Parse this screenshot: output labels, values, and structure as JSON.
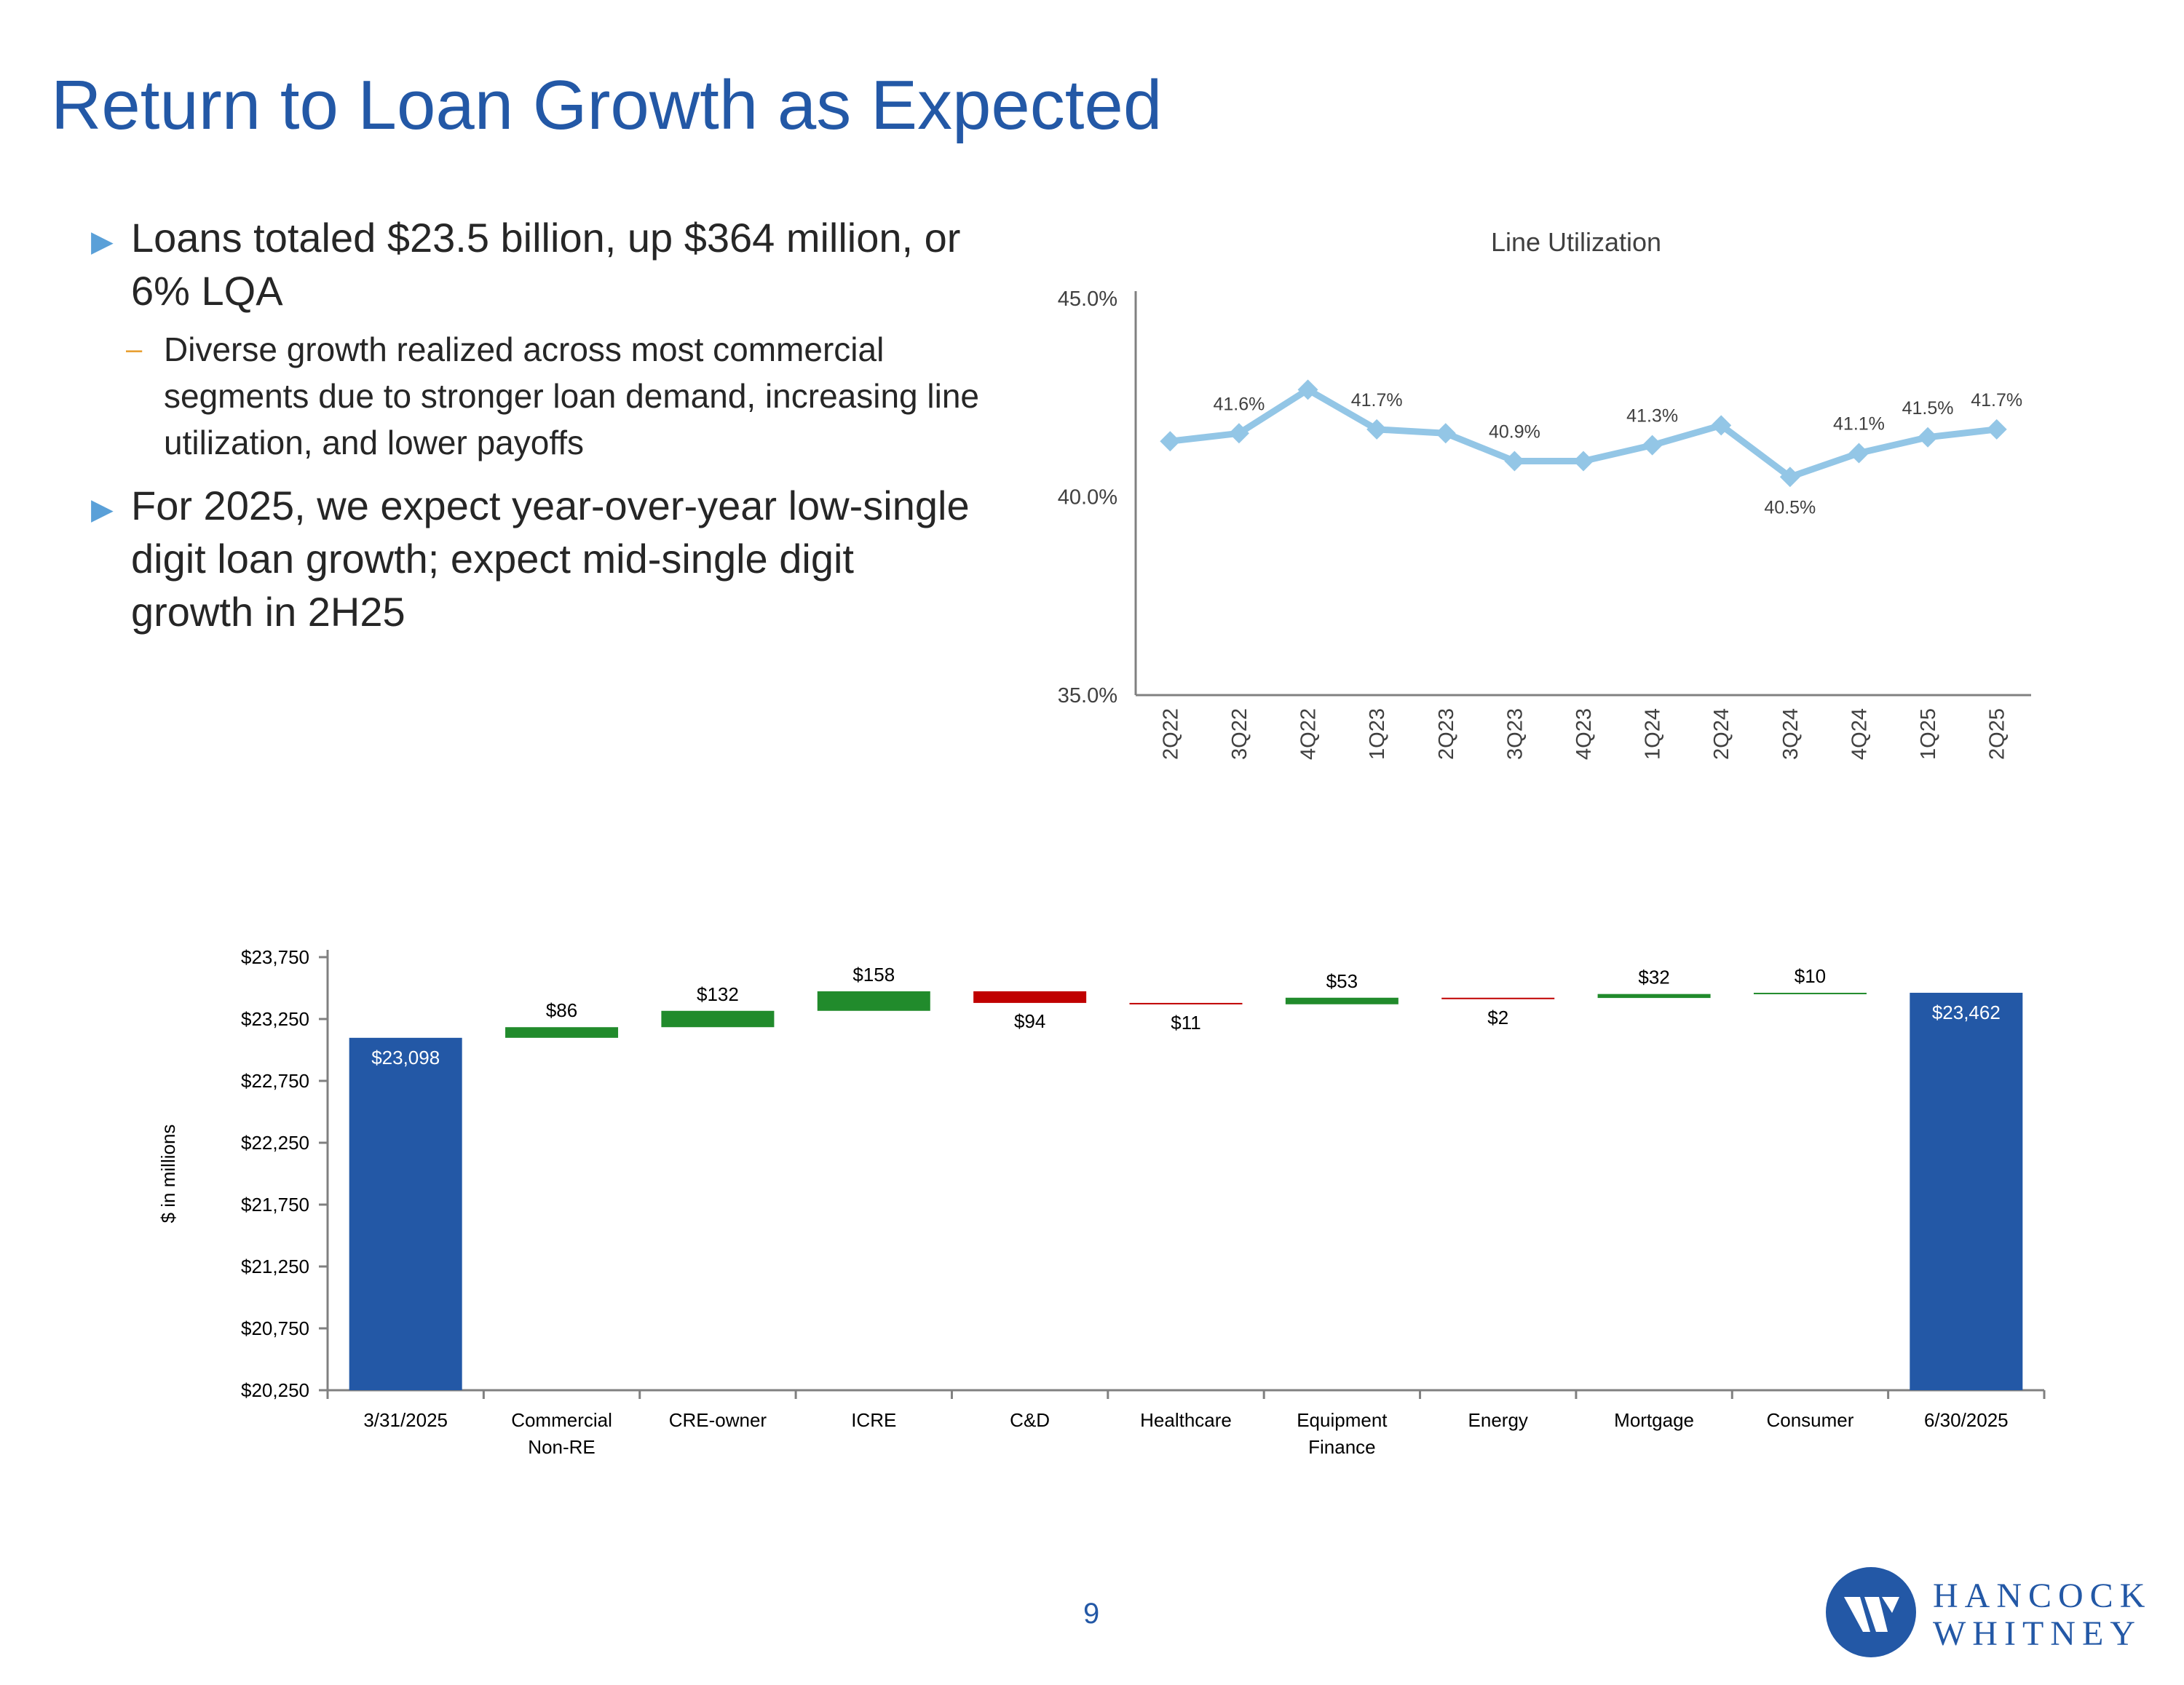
{
  "title": "Return to Loan Growth as Expected",
  "bullets": [
    {
      "text": "Loans totaled $23.5 billion, up $364 million, or 6% LQA",
      "sub": [
        "Diverse growth realized across most commercial segments due to stronger loan demand, increasing line utilization, and lower payoffs"
      ]
    },
    {
      "text": "For 2025, we expect year-over-year low-single digit loan growth; expect mid-single digit growth in 2H25",
      "sub": []
    }
  ],
  "page_number": "9",
  "brand": {
    "line1": "HANCOCK",
    "line2": "WHITNEY"
  },
  "colors": {
    "title": "#2358a6",
    "line": "#93c6e6",
    "bar_total": "#2358a6",
    "increase": "#218b2c",
    "decrease": "#c00000"
  },
  "chart_data": [
    {
      "type": "line",
      "title": "Line Utilization",
      "categories": [
        "2Q22",
        "3Q22",
        "4Q22",
        "1Q23",
        "2Q23",
        "3Q23",
        "4Q23",
        "1Q24",
        "2Q24",
        "3Q24",
        "4Q24",
        "1Q25",
        "2Q25"
      ],
      "values": [
        41.4,
        41.6,
        42.7,
        41.7,
        41.6,
        40.9,
        40.9,
        41.3,
        41.8,
        40.5,
        41.1,
        41.5,
        41.7
      ],
      "data_labels": [
        "",
        "41.6%",
        "",
        "41.7%",
        "",
        "40.9%",
        "",
        "41.3%",
        "",
        "40.5%",
        "41.1%",
        "41.5%",
        "41.7%"
      ],
      "ylim": [
        35.0,
        45.0
      ],
      "yticks": [
        "35.0%",
        "40.0%",
        "45.0%"
      ],
      "grid": false
    },
    {
      "type": "bar",
      "subtype": "waterfall",
      "ylabel": "$ in millions",
      "ylim": [
        20250,
        23750
      ],
      "yticks": [
        "$20,250",
        "$20,750",
        "$21,250",
        "$21,750",
        "$22,250",
        "$22,750",
        "$23,250",
        "$23,750"
      ],
      "categories": [
        "3/31/2025",
        "Commercial Non-RE",
        "CRE-owner",
        "ICRE",
        "C&D",
        "Healthcare",
        "Equipment Finance",
        "Energy",
        "Mortgage",
        "Consumer",
        "6/30/2025"
      ],
      "kinds": [
        "total",
        "increase",
        "increase",
        "increase",
        "decrease",
        "decrease",
        "increase",
        "decrease",
        "increase",
        "increase",
        "total"
      ],
      "values": [
        23098,
        86,
        132,
        158,
        -94,
        -11,
        53,
        -2,
        32,
        10,
        23462
      ],
      "data_labels": [
        "$23,098",
        "$86",
        "$132",
        "$158",
        "$94",
        "$11",
        "$53",
        "$2",
        "$32",
        "$10",
        "$23,462"
      ]
    }
  ]
}
